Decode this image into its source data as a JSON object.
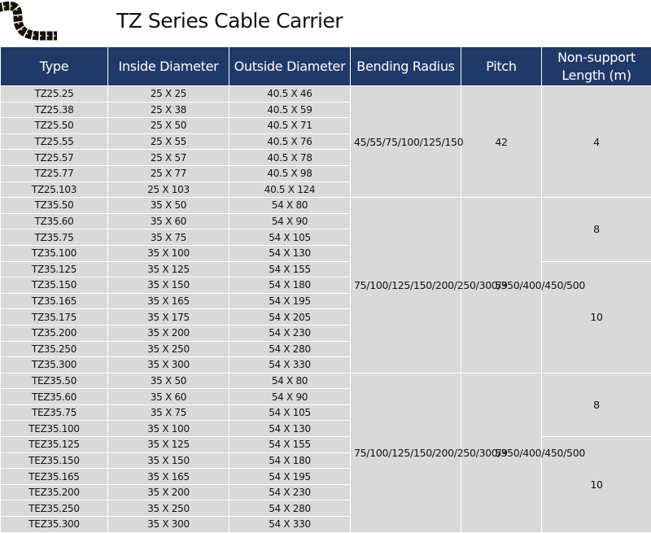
{
  "title": "TZ Series Cable Carrier",
  "logo_icon": "cable-chain-icon",
  "colors": {
    "header_bg": "#1f3a68",
    "cell_bg": "#d9d9d9"
  },
  "headers": [
    "Type",
    "Inside Diameter",
    "Outside Diameter",
    "Bending Radius",
    "Pitch",
    "Non-support Length (m)"
  ],
  "groups": [
    {
      "bending_radius": "45/55/75/100/125/150",
      "pitch": "42",
      "rows": [
        [
          "TZ25.25",
          "25 X 25",
          "40.5 X 46"
        ],
        [
          "TZ25.38",
          "25 X 38",
          "40.5 X 59"
        ],
        [
          "TZ25.50",
          "25 X 50",
          "40.5 X 71"
        ],
        [
          "TZ25.55",
          "25 X 55",
          "40.5 X 76"
        ],
        [
          "TZ25.57",
          "25 X 57",
          "40.5 X 78"
        ],
        [
          "TZ25.77",
          "25 X 77",
          "40.5 X 98"
        ],
        [
          "TZ25.103",
          "25 X 103",
          "40.5 X 124"
        ]
      ],
      "non_support": [
        {
          "value": "4",
          "rows": 7
        }
      ]
    },
    {
      "bending_radius": "75/100/125/150/200/250/300/350/400/450/500",
      "pitch": "59",
      "rows": [
        [
          "TZ35.50",
          "35 X 50",
          "54 X 80"
        ],
        [
          "TZ35.60",
          "35 X 60",
          "54 X 90"
        ],
        [
          "TZ35.75",
          "35 X 75",
          "54 X 105"
        ],
        [
          "TZ35.100",
          "35 X 100",
          "54 X 130"
        ],
        [
          "TZ35.125",
          "35 X 125",
          "54 X 155"
        ],
        [
          "TZ35.150",
          "35 X 150",
          "54 X 180"
        ],
        [
          "TZ35.165",
          "35 X 165",
          "54 X 195"
        ],
        [
          "TZ35.175",
          "35 X 175",
          "54 X 205"
        ],
        [
          "TZ35.200",
          "35 X 200",
          "54 X 230"
        ],
        [
          "TZ35.250",
          "35 X 250",
          "54 X 280"
        ],
        [
          "TZ35.300",
          "35 X 300",
          "54 X 330"
        ]
      ],
      "non_support": [
        {
          "value": "8",
          "rows": 4
        },
        {
          "value": "10",
          "rows": 7
        }
      ]
    },
    {
      "bending_radius": "75/100/125/150/200/250/300/350/400/450/500",
      "pitch": "59",
      "rows": [
        [
          "TEZ35.50",
          "35 X 50",
          "54 X 80"
        ],
        [
          "TEZ35.60",
          "35 X 60",
          "54 X 90"
        ],
        [
          "TEZ35.75",
          "35 X 75",
          "54 X 105"
        ],
        [
          "TEZ35.100",
          "35 X 100",
          "54 X 130"
        ],
        [
          "TEZ35.125",
          "35 X 125",
          "54 X 155"
        ],
        [
          "TEZ35.150",
          "35 X 150",
          "54 X 180"
        ],
        [
          "TEZ35.165",
          "35 X 165",
          "54 X 195"
        ],
        [
          "TEZ35.200",
          "35 X 200",
          "54 X 230"
        ],
        [
          "TEZ35.250",
          "35 X 250",
          "54 X 280"
        ],
        [
          "TEZ35.300",
          "35 X 300",
          "54 X 330"
        ]
      ],
      "non_support": [
        {
          "value": "8",
          "rows": 4
        },
        {
          "value": "10",
          "rows": 6
        }
      ]
    }
  ]
}
